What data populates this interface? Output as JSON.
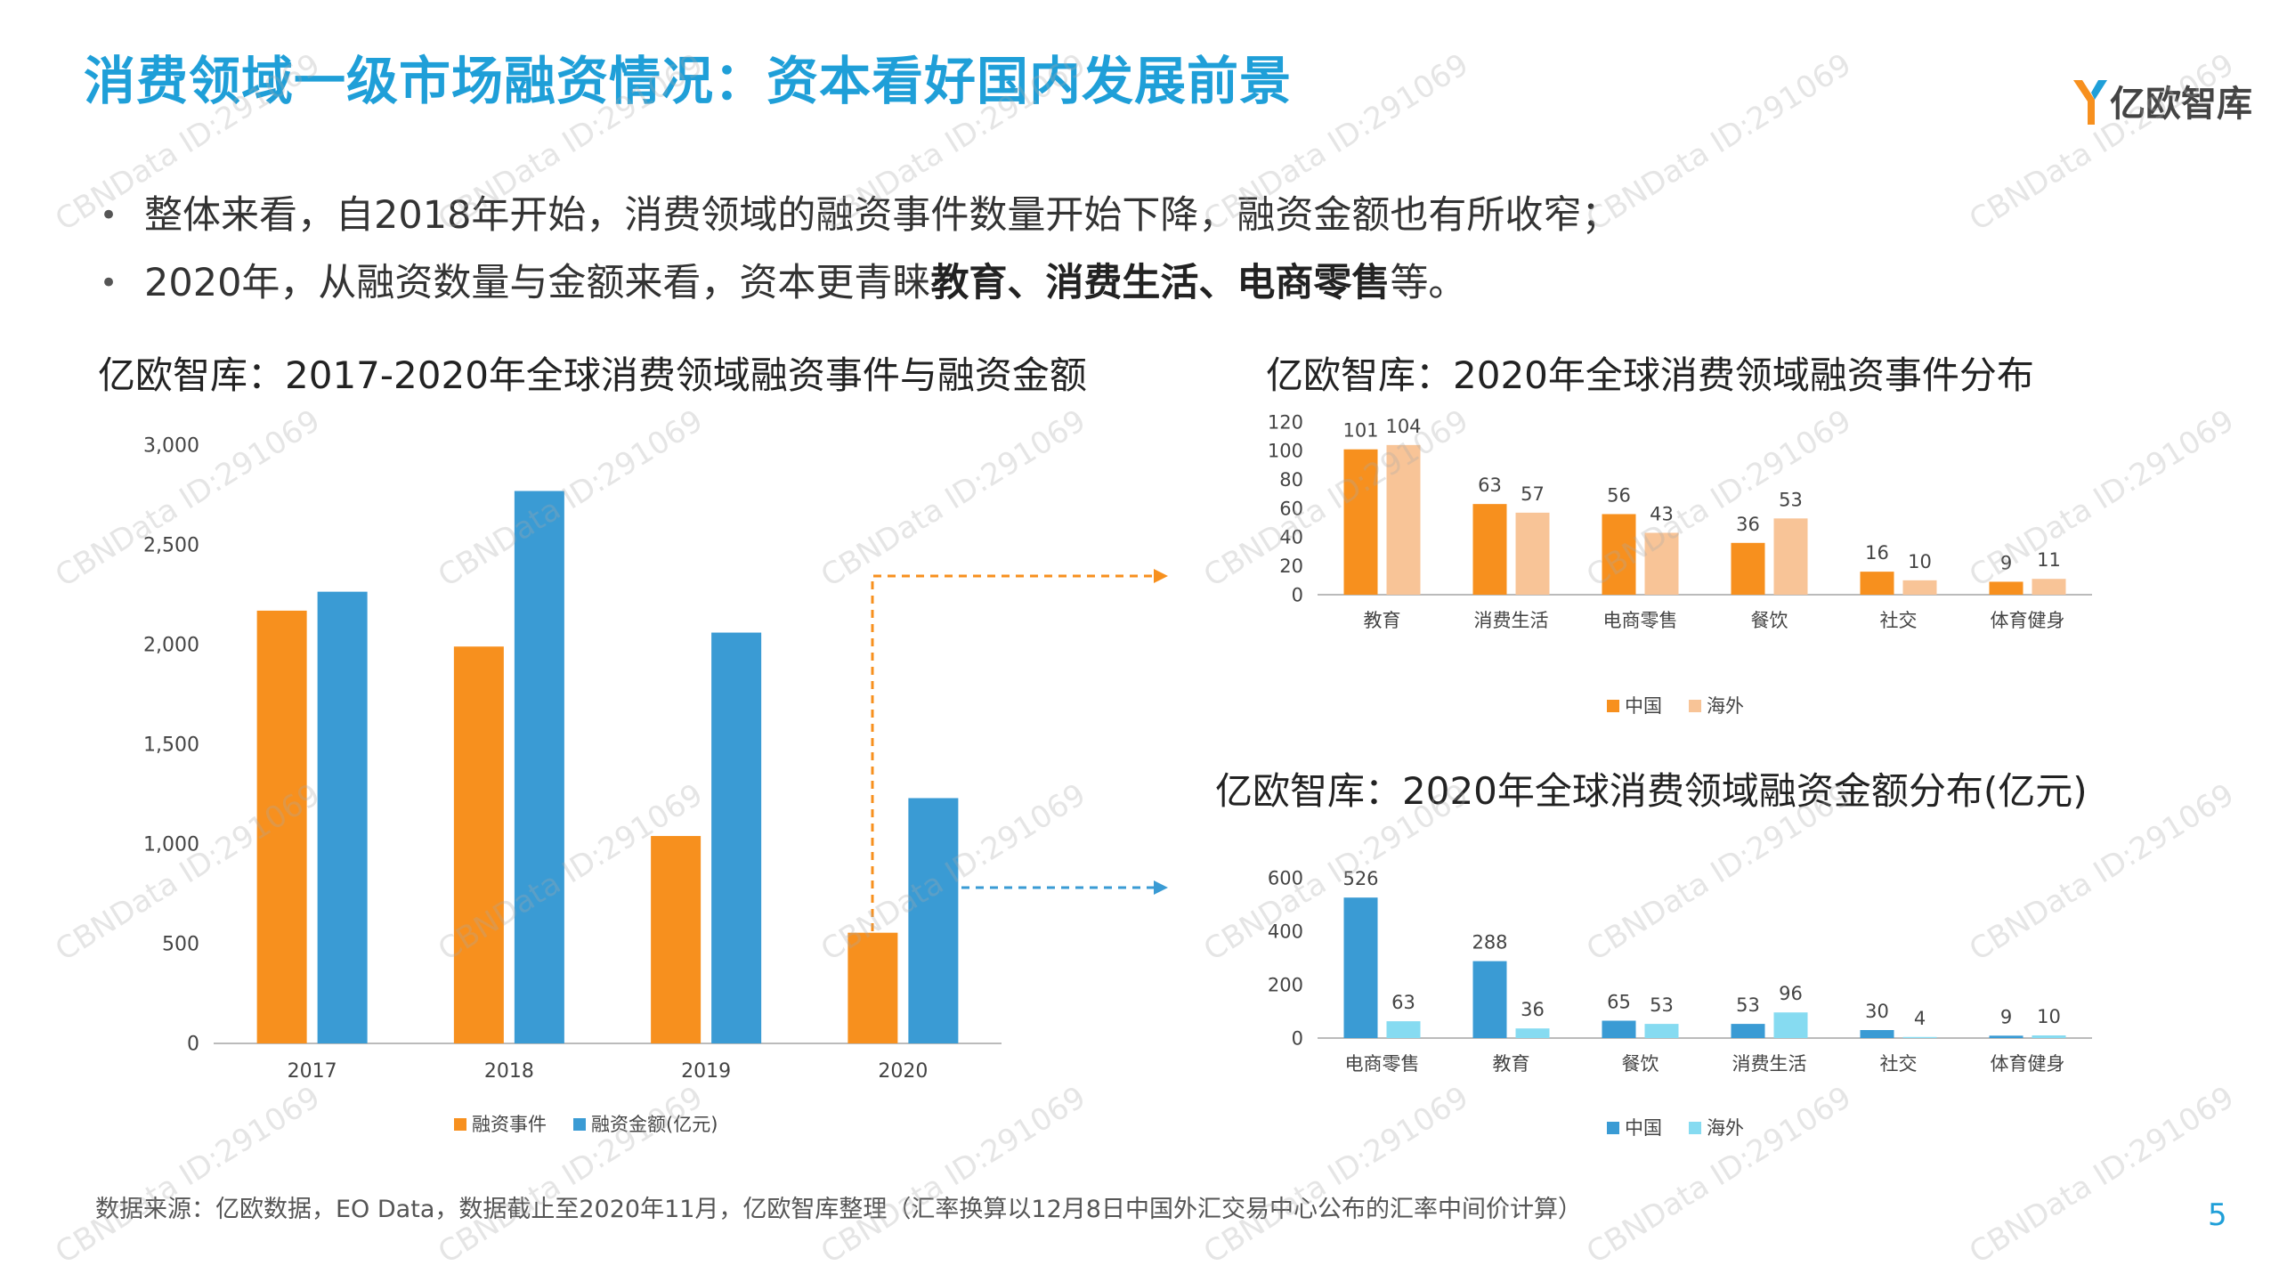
{
  "header": {
    "title": "消费领域一级市场融资情况：资本看好国内发展前景",
    "logo_text": "亿欧智库"
  },
  "bullets": [
    {
      "parts": [
        {
          "text": "整体来看，自2018年开始，消费领域的融资事件数量开始下降，融资金额也有所收窄；",
          "bold": false
        }
      ]
    },
    {
      "parts": [
        {
          "text": "2020年，从融资数量与金额来看，资本更青睐",
          "bold": false
        },
        {
          "text": "教育、消费生活、电商零售",
          "bold": true
        },
        {
          "text": "等。",
          "bold": false
        }
      ]
    }
  ],
  "colors": {
    "title_blue": "#1f9fd8",
    "orange": "#f7901e",
    "light_orange": "#f8c497",
    "blue": "#3a9bd4",
    "light_blue": "#86dbf1",
    "arrow_orange": "#f7901e",
    "arrow_blue": "#3a9bd4"
  },
  "chart_data": [
    {
      "id": "left",
      "type": "bar",
      "title": "亿欧智库：2017-2020年全球消费领域融资事件与融资金额",
      "categories": [
        "2017",
        "2018",
        "2019",
        "2020"
      ],
      "series": [
        {
          "name": "融资事件",
          "values": [
            2170,
            1990,
            1040,
            555
          ],
          "color": "#f7901e"
        },
        {
          "name": "融资金额(亿元)",
          "values": [
            2265,
            2770,
            2060,
            1230
          ],
          "color": "#3a9bd4"
        }
      ],
      "ylim": [
        0,
        3000
      ],
      "yticks": [
        "0",
        "500",
        "1,000",
        "1,500",
        "2,000",
        "2,500",
        "3,000"
      ],
      "legend": "bottom"
    },
    {
      "id": "top-right",
      "type": "bar",
      "title": "亿欧智库：2020年全球消费领域融资事件分布",
      "categories": [
        "教育",
        "消费生活",
        "电商零售",
        "餐饮",
        "社交",
        "体育健身"
      ],
      "series": [
        {
          "name": "中国",
          "values": [
            101,
            63,
            56,
            36,
            16,
            9
          ],
          "color": "#f7901e"
        },
        {
          "name": "海外",
          "values": [
            104,
            57,
            43,
            53,
            10,
            11
          ],
          "color": "#f8c497"
        }
      ],
      "ylim": [
        0,
        120
      ],
      "yticks": [
        "0",
        "20",
        "40",
        "60",
        "80",
        "100",
        "120"
      ],
      "data_labels": true,
      "legend": "bottom"
    },
    {
      "id": "bottom-right",
      "type": "bar",
      "title": "亿欧智库：2020年全球消费领域融资金额分布(亿元)",
      "categories": [
        "电商零售",
        "教育",
        "餐饮",
        "消费生活",
        "社交",
        "体育健身"
      ],
      "series": [
        {
          "name": "中国",
          "values": [
            526,
            288,
            65,
            53,
            30,
            9
          ],
          "color": "#3a9bd4"
        },
        {
          "name": "海外",
          "values": [
            63,
            36,
            53,
            96,
            4,
            10
          ],
          "color": "#86dbf1"
        }
      ],
      "ylim": [
        0,
        600
      ],
      "yticks": [
        "0",
        "200",
        "400",
        "600"
      ],
      "data_labels": true,
      "legend": "bottom"
    }
  ],
  "footer": {
    "source": "数据来源：亿欧数据，EO Data，数据截止至2020年11月，亿欧智库整理（汇率换算以12月8日中国外汇交易中心公布的汇率中间价计算）",
    "page_number": "5"
  },
  "watermark": "CBNData ID:291069"
}
